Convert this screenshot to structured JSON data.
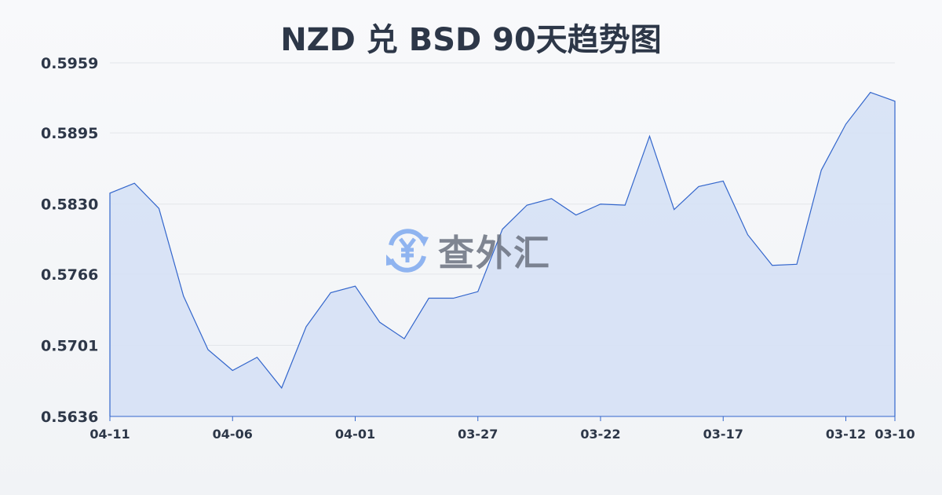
{
  "chart_data": {
    "type": "area",
    "title": "NZD 兑 BSD 90天趋势图",
    "xlabel": "",
    "ylabel": "",
    "ylim": [
      0.5636,
      0.5959
    ],
    "yticks": [
      "0.5959",
      "0.5895",
      "0.5830",
      "0.5766",
      "0.5701",
      "0.5636"
    ],
    "xticks": [
      "04-11",
      "04-06",
      "04-01",
      "03-27",
      "03-22",
      "03-17",
      "03-12",
      "03-10"
    ],
    "grid": true,
    "colors": {
      "line": "#3366cc",
      "fill": "#d6e1f5",
      "grid": "#e3e6ea"
    },
    "x": [
      "04-11",
      "04-10",
      "04-09",
      "04-08",
      "04-07",
      "04-06",
      "04-05",
      "04-04",
      "04-03",
      "04-02",
      "04-01",
      "03-31",
      "03-30",
      "03-29",
      "03-28",
      "03-27",
      "03-26",
      "03-25",
      "03-24",
      "03-23",
      "03-22",
      "03-21",
      "03-20",
      "03-19",
      "03-18",
      "03-17",
      "03-16",
      "03-15",
      "03-14",
      "03-13",
      "03-12",
      "03-11",
      "03-10"
    ],
    "values": [
      0.584,
      0.5849,
      0.5826,
      0.5746,
      0.5697,
      0.5678,
      0.569,
      0.5662,
      0.5718,
      0.5749,
      0.5755,
      0.5722,
      0.5707,
      0.5744,
      0.5744,
      0.575,
      0.5807,
      0.5829,
      0.5835,
      0.582,
      0.583,
      0.5829,
      0.5892,
      0.5825,
      0.5846,
      0.5851,
      0.5802,
      0.5774,
      0.5775,
      0.5861,
      0.5903,
      0.5932,
      0.5924
    ]
  },
  "watermark": {
    "text": "查外汇",
    "icon": "yen-exchange-icon"
  }
}
